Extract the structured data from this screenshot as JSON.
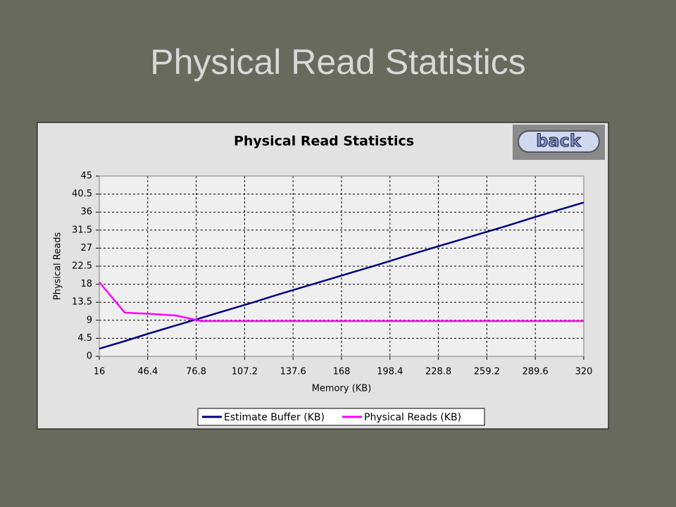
{
  "slide_title": "Physical Read Statistics",
  "back_button": "back",
  "chart_data": {
    "type": "line",
    "title": "Physical Read Statistics",
    "x_label": "Memory (KB)",
    "y_label": "Physical Reads",
    "x": [
      16,
      32,
      48,
      64,
      80,
      96,
      112,
      128,
      144,
      160,
      176,
      192,
      208,
      224,
      240,
      256,
      272,
      288,
      304,
      320
    ],
    "series": [
      {
        "name": "Estimate Buffer (KB)",
        "color": "#000080",
        "values": [
          1.9,
          3.8,
          5.8,
          7.7,
          9.6,
          11.5,
          13.4,
          15.4,
          17.3,
          19.2,
          21.1,
          23,
          25,
          26.9,
          28.8,
          30.7,
          32.6,
          34.6,
          36.5,
          38.4
        ]
      },
      {
        "name": "Physical Reads (KB)",
        "color": "#ff00ff",
        "values": [
          18.5,
          10.9,
          10.6,
          10.2,
          8.8,
          8.8,
          8.8,
          8.8,
          8.8,
          8.8,
          8.8,
          8.8,
          8.8,
          8.8,
          8.8,
          8.8,
          8.8,
          8.8,
          8.8,
          8.8
        ]
      }
    ],
    "xlim": [
      16,
      320
    ],
    "xticks": [
      16,
      46.4,
      76.8,
      107.2,
      137.6,
      168,
      198.4,
      228.8,
      259.2,
      289.6,
      320
    ],
    "ylim": [
      0,
      45
    ],
    "yticks": [
      0,
      4.5,
      9,
      13.5,
      18,
      22.5,
      27,
      31.5,
      36,
      40.5,
      45
    ],
    "grid": true,
    "legend": "bottom"
  }
}
